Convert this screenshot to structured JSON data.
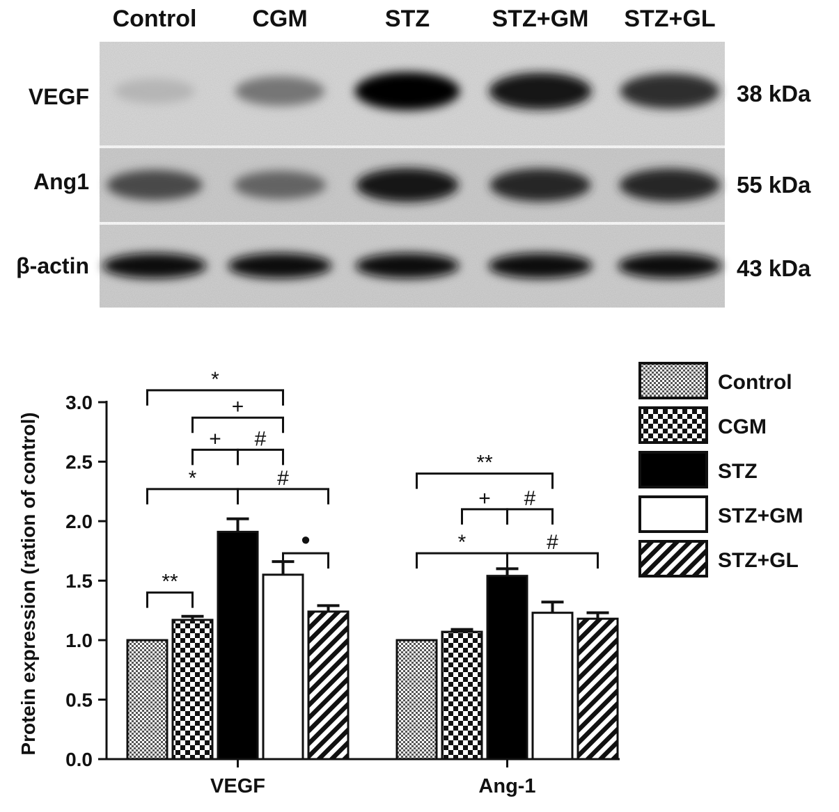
{
  "blot": {
    "lanes": [
      "Control",
      "CGM",
      "STZ",
      "STZ+GM",
      "STZ+GL"
    ],
    "rows": [
      {
        "protein": "VEGF",
        "size": "38 kDa",
        "intensity": [
          0.22,
          0.5,
          1.0,
          0.92,
          0.82
        ]
      },
      {
        "protein": "Ang1",
        "size": "55 kDa",
        "intensity": [
          0.7,
          0.58,
          0.92,
          0.86,
          0.86
        ]
      },
      {
        "protein": "β-actin",
        "size": "43 kDa",
        "intensity": [
          0.95,
          0.95,
          0.95,
          0.95,
          0.95
        ]
      }
    ]
  },
  "chart_data": {
    "type": "bar",
    "categories": [
      "VEGF",
      "Ang-1"
    ],
    "ylabel": "Protein expression (ration of control)",
    "ylim": [
      0,
      3.0
    ],
    "yticks": [
      "0.0",
      "0.5",
      "1.0",
      "1.5",
      "2.0",
      "2.5",
      "3.0"
    ],
    "series": [
      {
        "name": "Control",
        "pattern": "fine-check",
        "values": [
          1.0,
          1.0
        ],
        "errors": [
          0,
          0
        ]
      },
      {
        "name": "CGM",
        "pattern": "check",
        "values": [
          1.17,
          1.07
        ],
        "errors": [
          0.03,
          0.02
        ]
      },
      {
        "name": "STZ",
        "pattern": "solid",
        "values": [
          1.91,
          1.54
        ],
        "errors": [
          0.11,
          0.06
        ]
      },
      {
        "name": "STZ+GM",
        "pattern": "white",
        "values": [
          1.55,
          1.23
        ],
        "errors": [
          0.11,
          0.09
        ]
      },
      {
        "name": "STZ+GL",
        "pattern": "diagonal",
        "values": [
          1.24,
          1.18
        ],
        "errors": [
          0.05,
          0.05
        ]
      }
    ],
    "significance": [
      {
        "category": "VEGF",
        "from": 0,
        "to": 1,
        "level": 1.4,
        "label": "**"
      },
      {
        "category": "VEGF",
        "from": 0,
        "to": 2,
        "level": 2.27,
        "label": "*"
      },
      {
        "category": "VEGF",
        "from": 1,
        "to": 2,
        "level": 2.6,
        "label": "+"
      },
      {
        "category": "VEGF",
        "from": 1,
        "to": 3,
        "level": 2.87,
        "label": "+"
      },
      {
        "category": "VEGF",
        "from": 0,
        "to": 3,
        "level": 3.1,
        "label": "*"
      },
      {
        "category": "VEGF",
        "from": 2,
        "to": 3,
        "level": 2.6,
        "label": "#"
      },
      {
        "category": "VEGF",
        "from": 2,
        "to": 4,
        "level": 2.27,
        "label": "#"
      },
      {
        "category": "VEGF",
        "from": 3,
        "to": 4,
        "level": 1.73,
        "label": "•"
      },
      {
        "category": "Ang-1",
        "from": 0,
        "to": 3,
        "level": 2.4,
        "label": "**"
      },
      {
        "category": "Ang-1",
        "from": 1,
        "to": 2,
        "level": 2.1,
        "label": "+"
      },
      {
        "category": "Ang-1",
        "from": 2,
        "to": 3,
        "level": 2.1,
        "label": "#"
      },
      {
        "category": "Ang-1",
        "from": 0,
        "to": 2,
        "level": 1.73,
        "label": "*"
      },
      {
        "category": "Ang-1",
        "from": 2,
        "to": 4,
        "level": 1.73,
        "label": "#"
      }
    ],
    "legend_position": "right"
  }
}
